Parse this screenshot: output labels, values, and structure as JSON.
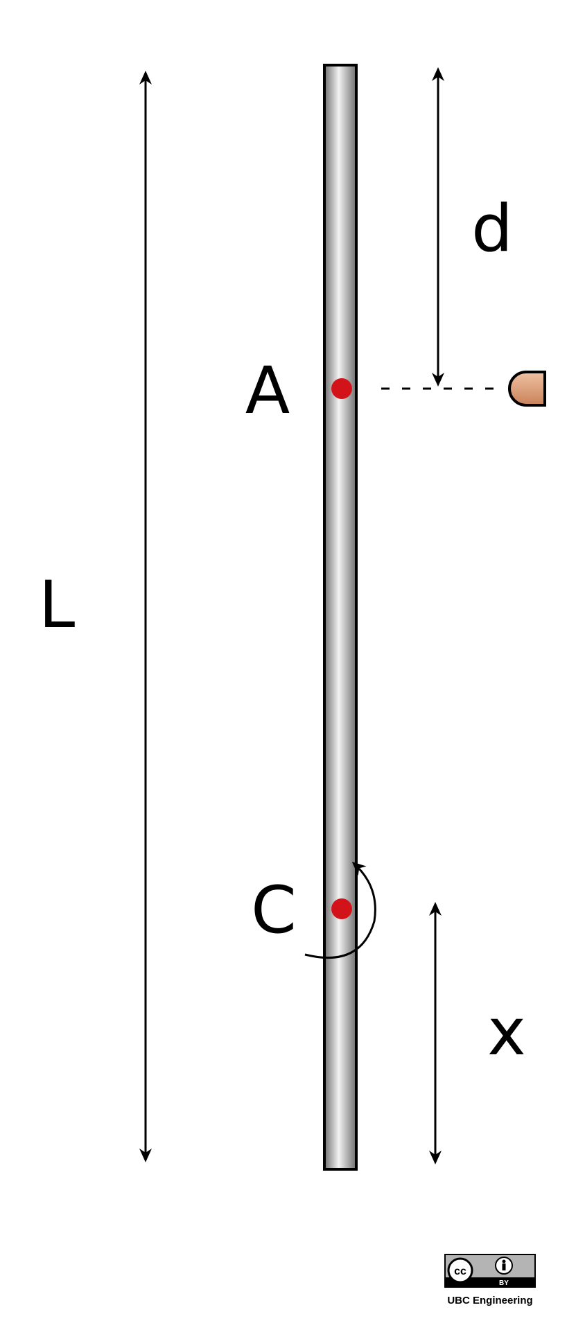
{
  "labels": {
    "length": "L",
    "distance": "d",
    "point_a": "A",
    "point_c": "C",
    "offset": "x"
  },
  "license": {
    "cc": "cc",
    "by": "BY",
    "credit": "UBC Engineering"
  },
  "colors": {
    "rod_edge": "#6f6f6f",
    "rod_highlight": "#f2f2f2",
    "point": "#d2141a",
    "projectile": "#d9946e"
  }
}
